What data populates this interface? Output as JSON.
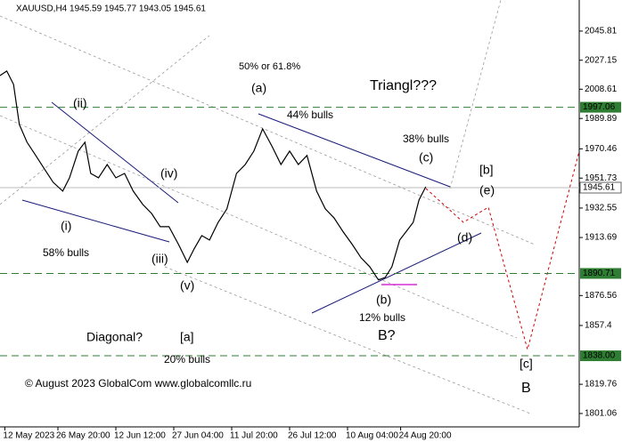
{
  "chart_data": {
    "type": "line",
    "title": "XAUUSD,H4  1945.59 1945.77 1943.05 1945.61",
    "x": [
      0,
      7,
      14,
      20,
      28,
      37,
      46,
      55,
      65,
      72,
      81,
      88,
      94,
      102,
      111,
      120,
      129,
      138,
      148,
      157,
      166,
      175,
      185,
      194,
      201,
      209,
      217,
      226,
      235,
      245,
      254,
      263,
      272,
      282,
      291,
      300,
      309,
      318,
      328,
      337,
      346,
      355,
      365,
      374,
      383,
      392,
      399,
      406,
      414,
      421,
      428,
      434,
      441
    ],
    "values": [
      2017.3,
      2020.2,
      2011.7,
      1986.0,
      1974.7,
      1966.2,
      1957.6,
      1949.1,
      1943.4,
      1951.9,
      1969.0,
      1974.7,
      1954.7,
      1951.9,
      1960.4,
      1951.9,
      1954.7,
      1943.4,
      1934.8,
      1929.1,
      1920.6,
      1920.6,
      1909.2,
      1897.8,
      1906.4,
      1914.9,
      1912.1,
      1923.4,
      1932.0,
      1954.7,
      1960.4,
      1969.0,
      1983.2,
      1971.8,
      1960.4,
      1969.0,
      1960.4,
      1966.2,
      1943.4,
      1932.0,
      1926.3,
      1917.7,
      1909.2,
      1900.7,
      1895.0,
      1886.5,
      1888.2,
      1895.0,
      1912.1,
      1917.7,
      1923.4,
      1937.7,
      1946.2
    ],
    "color": "#000000",
    "xlim": [
      0,
      600
    ],
    "xticks": [
      {
        "value": 5,
        "label": "12 May 2023"
      },
      {
        "value": 60,
        "label": "26 May 20:00"
      },
      {
        "value": 120,
        "label": "12 Jun 12:00"
      },
      {
        "value": 180,
        "label": "27 Jun 04:00"
      },
      {
        "value": 240,
        "label": "11 Jul 20:00"
      },
      {
        "value": 300,
        "label": "26 Jul 12:00"
      },
      {
        "value": 360,
        "label": "10 Aug 04:00"
      },
      {
        "value": 415,
        "label": "24 Aug 20:00"
      }
    ],
    "ylim": [
      1792.5,
      2065.7
    ],
    "yticks": [
      2045.81,
      2027.15,
      2008.61,
      1989.89,
      1970.46,
      1951.73,
      1932.55,
      1913.69,
      1876.56,
      1857.4,
      1819.76,
      1801.06
    ],
    "levels": [
      1997.06,
      1890.71,
      {
        "value": 1838,
        "label": "1838.00"
      }
    ],
    "level_color": "#2e7d32",
    "current_price": 1945.61,
    "annotations": [
      {
        "text": "50% or 61.8%",
        "color": "#1a237e"
      },
      {
        "text": "(a)",
        "color": "#1a237e"
      },
      {
        "text": "Triangl???",
        "color": "#1a237e"
      },
      {
        "text": "44% bulls",
        "color": "#000000"
      },
      {
        "text": "38% bulls",
        "color": "#000000"
      },
      {
        "text": "(c)",
        "color": "#1a237e"
      },
      {
        "text": "[b]",
        "color": "#2e7d32"
      },
      {
        "text": "(e)",
        "color": "#1a237e"
      },
      {
        "text": "(ii)",
        "color": "#1a237e"
      },
      {
        "text": "(iv)",
        "color": "#1a237e"
      },
      {
        "text": "(i)",
        "color": "#1a237e"
      },
      {
        "text": "58% bulls",
        "color": "#000000"
      },
      {
        "text": "(iii)",
        "color": "#1a237e"
      },
      {
        "text": "(d)",
        "color": "#1a237e"
      },
      {
        "text": "(v)",
        "color": "#1a237e"
      },
      {
        "text": "(b)",
        "color": "#1a237e"
      },
      {
        "text": "12% bulls",
        "color": "#000000"
      },
      {
        "text": "B?",
        "color": "#707070"
      },
      {
        "text": "Diagonal?",
        "color": "#1a237e"
      },
      {
        "text": "[a]",
        "color": "#2e7d32"
      },
      {
        "text": "20% bulls",
        "color": "#000000"
      },
      {
        "text": "[c]",
        "color": "#2e7d32"
      },
      {
        "text": "B",
        "color": "#a00000"
      }
    ],
    "watermark": "© August 2023 GlobalCom www.globalcomllc.ru"
  }
}
